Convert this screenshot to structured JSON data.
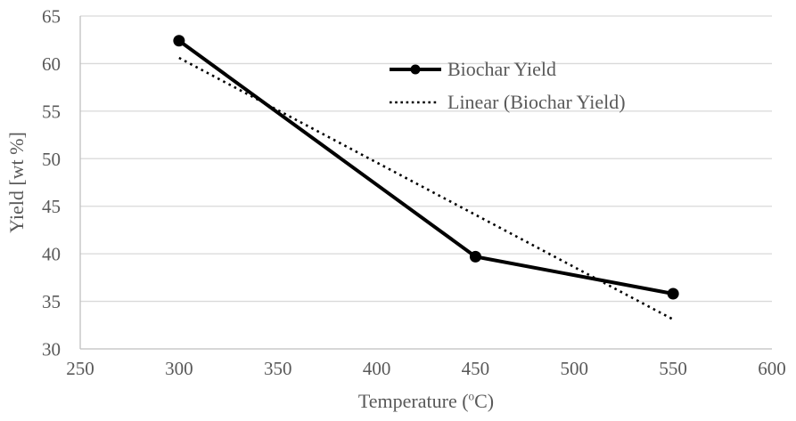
{
  "chart_data": {
    "type": "line",
    "title": "",
    "xlabel": "Temperature (oC)",
    "xlabel_parts": {
      "prefix": "Temperature (",
      "sup": "o",
      "suffix": "C)"
    },
    "ylabel": "Yield [wt %]",
    "x_axis": {
      "min": 250,
      "max": 600,
      "ticks": [
        250,
        300,
        350,
        400,
        450,
        500,
        550,
        600
      ]
    },
    "y_axis": {
      "min": 30,
      "max": 65,
      "ticks": [
        30,
        35,
        40,
        45,
        50,
        55,
        60,
        65
      ]
    },
    "grid": "horizontal-only",
    "legend_position": "inside-top-right-of-center",
    "series": [
      {
        "name": "Biochar Yield",
        "style": "solid-line-with-markers",
        "marker": "filled-circle",
        "color": "#000000",
        "x": [
          300,
          450,
          550
        ],
        "values": [
          62.4,
          39.7,
          35.8
        ]
      },
      {
        "name": "Linear (Biochar Yield)",
        "style": "dotted-trendline",
        "color": "#000000",
        "x": [
          300,
          550
        ],
        "values": [
          60.6,
          33.1
        ]
      }
    ],
    "colors": {
      "background": "#ffffff",
      "text": "#595959",
      "gridline": "#d9d9d9",
      "axis_line": "#bfbfbf",
      "series": "#000000"
    }
  }
}
